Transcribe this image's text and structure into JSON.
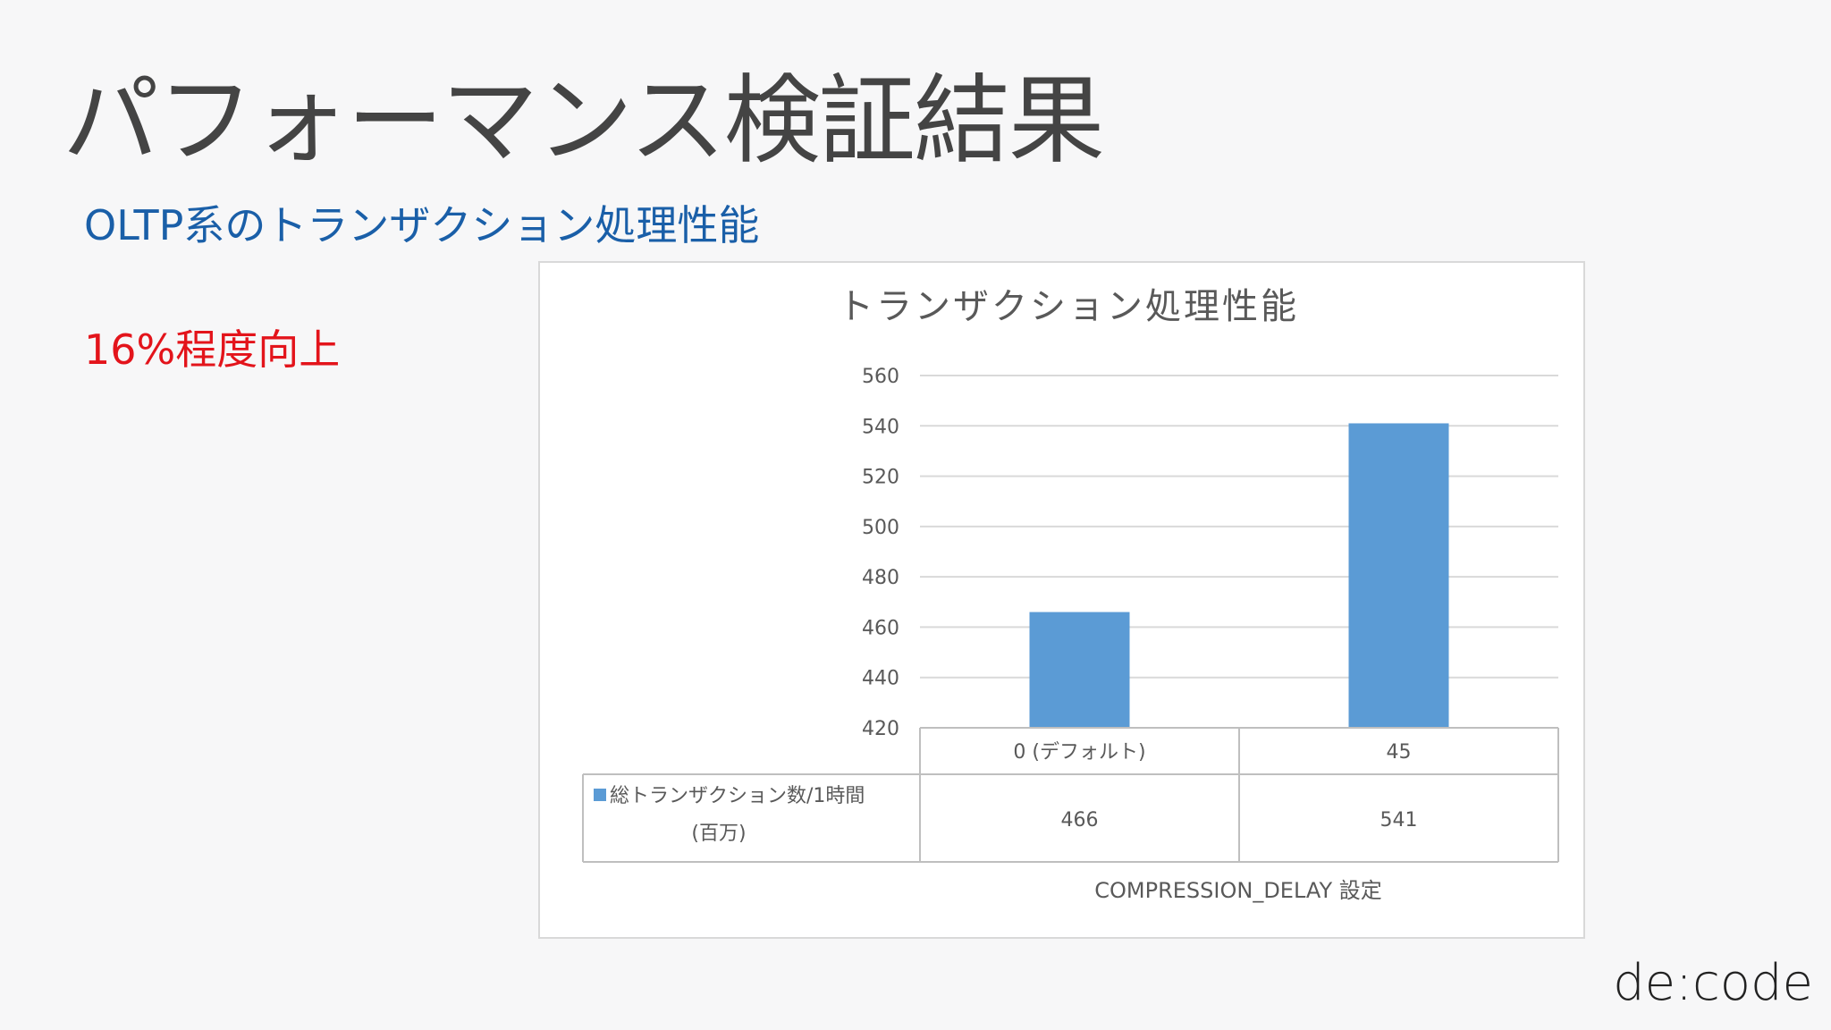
{
  "slide": {
    "title": "パフォーマンス検証結果",
    "subtitle": "OLTP系のトランザクション処理性能",
    "highlight": "16%程度向上",
    "logo": "de:code"
  },
  "colors": {
    "bar": "#5b9bd5",
    "subtitle": "#1a5fa8",
    "highlight": "#e3141b"
  },
  "chart_data": {
    "type": "bar",
    "title": "トランザクション処理性能",
    "categories": [
      "0 (デフォルト)",
      "45"
    ],
    "series": [
      {
        "name": "総トランザクション数/1時間(百万)",
        "values": [
          466,
          541
        ]
      }
    ],
    "series_label_lines": [
      "総トランザクション数/1時間",
      "(百万)"
    ],
    "xlabel": "COMPRESSION_DELAY 設定",
    "ylabel": "",
    "ylim": [
      420,
      560
    ],
    "yticks": [
      420,
      440,
      460,
      480,
      500,
      520,
      540,
      560
    ],
    "grid": true,
    "data_table": true
  }
}
